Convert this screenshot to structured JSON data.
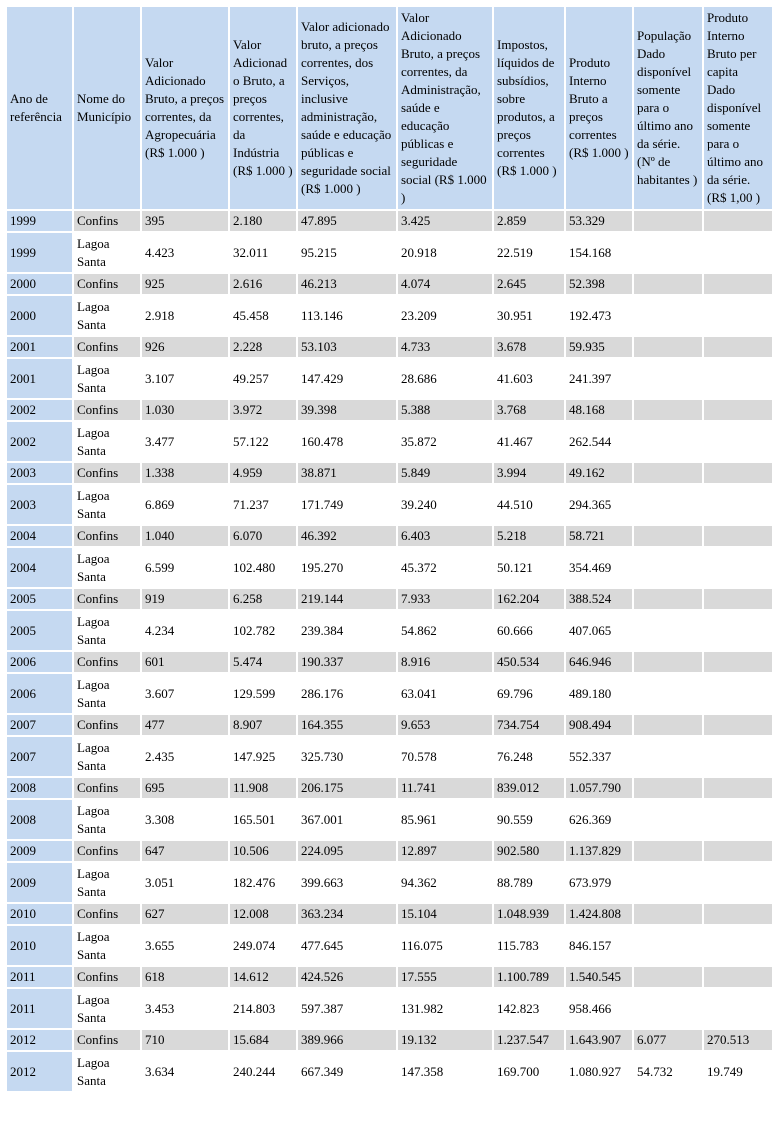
{
  "colors": {
    "header_bg": "#c5d9f1",
    "year_column_bg": "#c5d9f1",
    "shaded_row_bg": "#d9d9d9",
    "plain_row_bg": "#ffffff",
    "text": "#000000"
  },
  "table": {
    "columns": [
      "Ano de referência",
      "Nome do Município",
      "Valor Adicionado Bruto, a preços correntes, da Agropecuária (R$ 1.000 )",
      "Valor Adicionado Bruto, a preços correntes, da Indústria (R$ 1.000 )",
      "Valor adicionado bruto, a preços correntes, dos Serviços, inclusive administração, saúde e educação públicas e seguridade social (R$ 1.000 )",
      "Valor Adicionado Bruto, a preços correntes, da Administração, saúde e educação públicas e seguridade social (R$ 1.000 )",
      "Impostos, líquidos de subsídios, sobre produtos, a preços correntes (R$ 1.000 )",
      "Produto Interno Bruto a preços correntes (R$ 1.000 )",
      "População Dado disponível somente para o último ano da série. (Nº de habitantes )",
      "Produto Interno Bruto per capita Dado disponível somente para o último ano da série. (R$ 1,00 )"
    ],
    "rows": [
      [
        "1999",
        "Confins",
        "395",
        "2.180",
        "47.895",
        "3.425",
        "2.859",
        "53.329",
        "",
        ""
      ],
      [
        "1999",
        "Lagoa Santa",
        "4.423",
        "32.011",
        "95.215",
        "20.918",
        "22.519",
        "154.168",
        "",
        ""
      ],
      [
        "2000",
        "Confins",
        "925",
        "2.616",
        "46.213",
        "4.074",
        "2.645",
        "52.398",
        "",
        ""
      ],
      [
        "2000",
        "Lagoa Santa",
        "2.918",
        "45.458",
        "113.146",
        "23.209",
        "30.951",
        "192.473",
        "",
        ""
      ],
      [
        "2001",
        "Confins",
        "926",
        "2.228",
        "53.103",
        "4.733",
        "3.678",
        "59.935",
        "",
        ""
      ],
      [
        "2001",
        "Lagoa Santa",
        "3.107",
        "49.257",
        "147.429",
        "28.686",
        "41.603",
        "241.397",
        "",
        ""
      ],
      [
        "2002",
        "Confins",
        "1.030",
        "3.972",
        "39.398",
        "5.388",
        "3.768",
        "48.168",
        "",
        ""
      ],
      [
        "2002",
        "Lagoa Santa",
        "3.477",
        "57.122",
        "160.478",
        "35.872",
        "41.467",
        "262.544",
        "",
        ""
      ],
      [
        "2003",
        "Confins",
        "1.338",
        "4.959",
        "38.871",
        "5.849",
        "3.994",
        "49.162",
        "",
        ""
      ],
      [
        "2003",
        "Lagoa Santa",
        "6.869",
        "71.237",
        "171.749",
        "39.240",
        "44.510",
        "294.365",
        "",
        ""
      ],
      [
        "2004",
        "Confins",
        "1.040",
        "6.070",
        "46.392",
        "6.403",
        "5.218",
        "58.721",
        "",
        ""
      ],
      [
        "2004",
        "Lagoa Santa",
        "6.599",
        "102.480",
        "195.270",
        "45.372",
        "50.121",
        "354.469",
        "",
        ""
      ],
      [
        "2005",
        "Confins",
        "919",
        "6.258",
        "219.144",
        "7.933",
        "162.204",
        "388.524",
        "",
        ""
      ],
      [
        "2005",
        "Lagoa Santa",
        "4.234",
        "102.782",
        "239.384",
        "54.862",
        "60.666",
        "407.065",
        "",
        ""
      ],
      [
        "2006",
        "Confins",
        "601",
        "5.474",
        "190.337",
        "8.916",
        "450.534",
        "646.946",
        "",
        ""
      ],
      [
        "2006",
        "Lagoa Santa",
        "3.607",
        "129.599",
        "286.176",
        "63.041",
        "69.796",
        "489.180",
        "",
        ""
      ],
      [
        "2007",
        "Confins",
        "477",
        "8.907",
        "164.355",
        "9.653",
        "734.754",
        "908.494",
        "",
        ""
      ],
      [
        "2007",
        "Lagoa Santa",
        "2.435",
        "147.925",
        "325.730",
        "70.578",
        "76.248",
        "552.337",
        "",
        ""
      ],
      [
        "2008",
        "Confins",
        "695",
        "11.908",
        "206.175",
        "11.741",
        "839.012",
        "1.057.790",
        "",
        ""
      ],
      [
        "2008",
        "Lagoa Santa",
        "3.308",
        "165.501",
        "367.001",
        "85.961",
        "90.559",
        "626.369",
        "",
        ""
      ],
      [
        "2009",
        "Confins",
        "647",
        "10.506",
        "224.095",
        "12.897",
        "902.580",
        "1.137.829",
        "",
        ""
      ],
      [
        "2009",
        "Lagoa Santa",
        "3.051",
        "182.476",
        "399.663",
        "94.362",
        "88.789",
        "673.979",
        "",
        ""
      ],
      [
        "2010",
        "Confins",
        "627",
        "12.008",
        "363.234",
        "15.104",
        "1.048.939",
        "1.424.808",
        "",
        ""
      ],
      [
        "2010",
        "Lagoa Santa",
        "3.655",
        "249.074",
        "477.645",
        "116.075",
        "115.783",
        "846.157",
        "",
        ""
      ],
      [
        "2011",
        "Confins",
        "618",
        "14.612",
        "424.526",
        "17.555",
        "1.100.789",
        "1.540.545",
        "",
        ""
      ],
      [
        "2011",
        "Lagoa Santa",
        "3.453",
        "214.803",
        "597.387",
        "131.982",
        "142.823",
        "958.466",
        "",
        ""
      ],
      [
        "2012",
        "Confins",
        "710",
        "15.684",
        "389.966",
        "19.132",
        "1.237.547",
        "1.643.907",
        "6.077",
        "270.513"
      ],
      [
        "2012",
        "Lagoa Santa",
        "3.634",
        "240.244",
        "667.349",
        "147.358",
        "169.700",
        "1.080.927",
        "54.732",
        "19.749"
      ]
    ]
  }
}
